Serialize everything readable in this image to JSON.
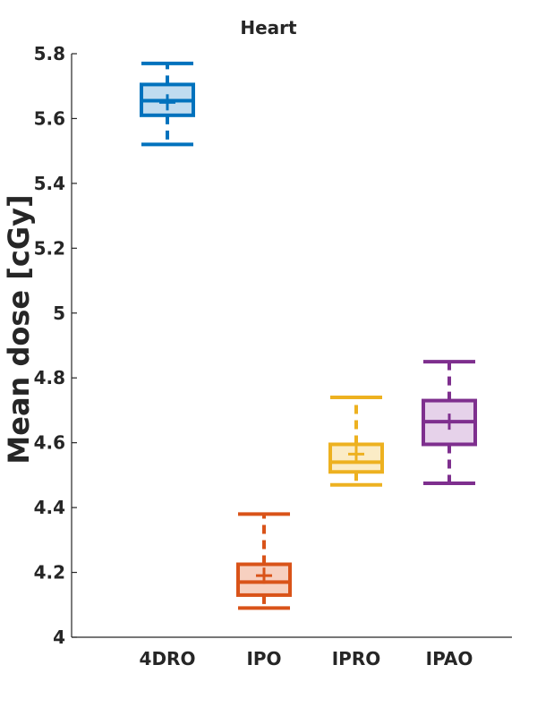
{
  "chart_data": {
    "type": "box",
    "title": "Heart",
    "xlabel": "",
    "ylabel": "Mean dose [cGy]",
    "ylim": [
      4,
      5.8
    ],
    "yticks": [
      4,
      4.2,
      4.4,
      4.6,
      4.8,
      5,
      5.2,
      5.4,
      5.6,
      5.8
    ],
    "ytick_labels": [
      "4",
      "4.2",
      "4.4",
      "4.6",
      "4.8",
      "5",
      "5.2",
      "5.4",
      "5.6",
      "5.8"
    ],
    "categories": [
      "4DRO",
      "IPO",
      "IPRO",
      "IPAO"
    ],
    "series": [
      {
        "name": "4DRO",
        "color": "#0072BD",
        "fill": "#C0DCF0",
        "whisker_low": 5.52,
        "q1": 5.61,
        "median": 5.655,
        "q3": 5.705,
        "whisker_high": 5.77,
        "mean": 5.65
      },
      {
        "name": "IPO",
        "color": "#D95319",
        "fill": "#F7D0C0",
        "whisker_low": 4.09,
        "q1": 4.13,
        "median": 4.17,
        "q3": 4.225,
        "whisker_high": 4.38,
        "mean": 4.19
      },
      {
        "name": "IPRO",
        "color": "#EDB120",
        "fill": "#FBECC6",
        "whisker_low": 4.47,
        "q1": 4.51,
        "median": 4.54,
        "q3": 4.595,
        "whisker_high": 4.74,
        "mean": 4.565
      },
      {
        "name": "IPAO",
        "color": "#7E2F8E",
        "fill": "#E6D2EA",
        "whisker_low": 4.475,
        "q1": 4.595,
        "median": 4.665,
        "q3": 4.73,
        "whisker_high": 4.85,
        "mean": 4.665
      }
    ]
  }
}
